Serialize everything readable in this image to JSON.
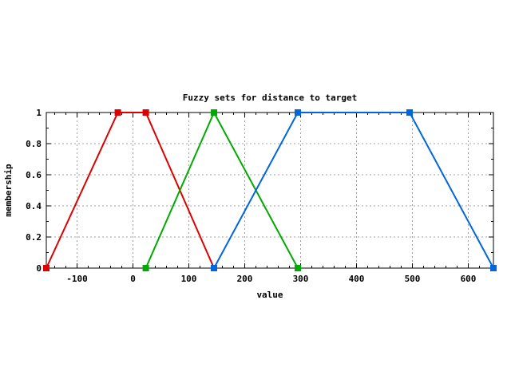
{
  "chart_data": {
    "type": "line",
    "title": "Fuzzy sets for distance to target",
    "xlabel": "value",
    "ylabel": "membership",
    "xlim": [
      -155,
      645
    ],
    "ylim": [
      0,
      1
    ],
    "x_ticks": [
      -100,
      0,
      100,
      200,
      300,
      400,
      500,
      600
    ],
    "x_tick_labels": [
      "-100",
      "0",
      "100",
      "200",
      "300",
      "400",
      "500",
      "600"
    ],
    "y_ticks": [
      0,
      0.2,
      0.4,
      0.6,
      0.8,
      1
    ],
    "y_tick_labels": [
      "0",
      "0.2",
      "0.4",
      "0.6",
      "0.8",
      "1"
    ],
    "grid": true,
    "legend": "none",
    "series": [
      {
        "color": "#dd0000",
        "points": [
          [
            -155,
            0
          ],
          [
            -27,
            1
          ],
          [
            23,
            1
          ],
          [
            145,
            0
          ]
        ]
      },
      {
        "color": "#00aa00",
        "points": [
          [
            23,
            0
          ],
          [
            145,
            1
          ],
          [
            295,
            0
          ]
        ]
      },
      {
        "color": "#0066dd",
        "points": [
          [
            145,
            0
          ],
          [
            295,
            1
          ],
          [
            495,
            1
          ],
          [
            645,
            0
          ]
        ]
      }
    ]
  }
}
